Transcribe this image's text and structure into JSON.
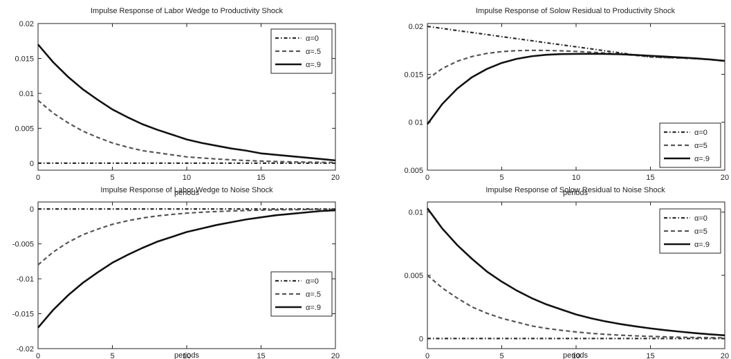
{
  "chart_data": [
    {
      "type": "line",
      "title": "Impulse Response of Labor Wedge to Productivity Shock",
      "xlabel": "periods",
      "ylabel": "",
      "xlim": [
        0,
        20
      ],
      "ylim": [
        -0.001,
        0.02
      ],
      "xticks": [
        0,
        5,
        10,
        15,
        20
      ],
      "xtick_labels": [
        "0",
        "5",
        "10",
        "15",
        "20"
      ],
      "yticks": [
        0,
        0.005,
        0.01,
        0.015,
        0.02
      ],
      "ytick_labels": [
        "0",
        "0.005",
        "0.01",
        "0.015",
        "0.02"
      ],
      "legend_position": "top-right",
      "x": [
        0,
        1,
        2,
        3,
        4,
        5,
        6,
        7,
        8,
        9,
        10,
        11,
        12,
        13,
        14,
        15,
        16,
        17,
        18,
        19,
        20
      ],
      "series": [
        {
          "name": "α=0",
          "style": "dashdot",
          "values": [
            0,
            0,
            0,
            0,
            0,
            0,
            0,
            0,
            0,
            0,
            0,
            0,
            0,
            0,
            0,
            0,
            0,
            0,
            0,
            0,
            0
          ]
        },
        {
          "name": "α=.5",
          "style": "dashed",
          "values": [
            0.009,
            0.0072,
            0.0058,
            0.0046,
            0.0037,
            0.0029,
            0.0023,
            0.0018,
            0.0015,
            0.0012,
            0.0009,
            0.00075,
            0.0006,
            0.00048,
            0.00038,
            0.0003,
            0.00024,
            0.00019,
            0.00015,
            0.00012,
            0.0001
          ]
        },
        {
          "name": "α=.9",
          "style": "solid",
          "values": [
            0.017,
            0.0145,
            0.0124,
            0.0106,
            0.0091,
            0.0077,
            0.0066,
            0.0056,
            0.0048,
            0.0041,
            0.0034,
            0.0029,
            0.0025,
            0.0021,
            0.0018,
            0.0014,
            0.0012,
            0.001,
            0.0008,
            0.0006,
            0.0004
          ]
        }
      ]
    },
    {
      "type": "line",
      "title": "Impulse Response of Solow Residual to Productivity Shock",
      "xlabel": "periods",
      "ylabel": "",
      "xlim": [
        0,
        20
      ],
      "ylim": [
        0.005,
        0.0203
      ],
      "xticks": [
        0,
        5,
        10,
        15,
        20
      ],
      "xtick_labels": [
        "0",
        "5",
        "10",
        "15",
        "20"
      ],
      "yticks": [
        0.005,
        0.01,
        0.015,
        0.02
      ],
      "ytick_labels": [
        "0.005",
        "0 01",
        "0.015",
        "0.02"
      ],
      "legend_position": "bottom-right",
      "x": [
        0,
        1,
        2,
        3,
        4,
        5,
        6,
        7,
        8,
        9,
        10,
        11,
        12,
        13,
        14,
        15,
        16,
        17,
        18,
        19,
        20
      ],
      "series": [
        {
          "name": "α=0",
          "style": "dashdot",
          "values": [
            0.02,
            0.01979,
            0.01957,
            0.01936,
            0.01915,
            0.01893,
            0.01872,
            0.01851,
            0.01829,
            0.01808,
            0.01787,
            0.01766,
            0.01744,
            0.01723,
            0.01702,
            0.0168,
            0.01675,
            0.0167,
            0.01664,
            0.01654,
            0.0164
          ]
        },
        {
          "name": "α=5",
          "style": "dashed",
          "values": [
            0.0145,
            0.0156,
            0.01636,
            0.01686,
            0.01718,
            0.01737,
            0.01747,
            0.0175,
            0.01749,
            0.01745,
            0.01739,
            0.01731,
            0.01721,
            0.0171,
            0.01697,
            0.01682,
            0.01675,
            0.0167,
            0.01664,
            0.01654,
            0.0164
          ]
        },
        {
          "name": "α=.9",
          "style": "solid",
          "values": [
            0.0098,
            0.0119,
            0.0135,
            0.0147,
            0.01556,
            0.01619,
            0.01661,
            0.01688,
            0.01704,
            0.01711,
            0.01713,
            0.01714,
            0.01713,
            0.01709,
            0.01702,
            0.01693,
            0.01685,
            0.01676,
            0.01667,
            0.01655,
            0.0164
          ]
        }
      ]
    },
    {
      "type": "line",
      "title": "Impulse Response of Labor Wedge to Noise Shock",
      "xlabel": "periods",
      "ylabel": "",
      "xlim": [
        0,
        20
      ],
      "ylim": [
        -0.02,
        0.001
      ],
      "xticks": [
        0,
        5,
        10,
        15,
        20
      ],
      "xtick_labels": [
        "0",
        "5",
        "10",
        "15",
        "20"
      ],
      "yticks": [
        -0.02,
        -0.015,
        -0.01,
        -0.005,
        0
      ],
      "ytick_labels": [
        "-0.02",
        "-0.015",
        "-0.01",
        "-0.005",
        "0"
      ],
      "legend_position": "bottom-right",
      "x": [
        0,
        1,
        2,
        3,
        4,
        5,
        6,
        7,
        8,
        9,
        10,
        11,
        12,
        13,
        14,
        15,
        16,
        17,
        18,
        19,
        20
      ],
      "series": [
        {
          "name": "α=0",
          "style": "dashdot",
          "values": [
            0,
            0,
            0,
            0,
            0,
            0,
            0,
            0,
            0,
            0,
            0,
            0,
            0,
            0,
            0,
            0,
            0,
            0,
            0,
            0,
            0
          ]
        },
        {
          "name": "α=.5",
          "style": "dashed",
          "values": [
            -0.008,
            -0.0062,
            -0.0048,
            -0.0037,
            -0.0029,
            -0.0022,
            -0.0017,
            -0.0013,
            -0.001,
            -0.00078,
            -0.0006,
            -0.00047,
            -0.00037,
            -0.00029,
            -0.00022,
            -0.00017,
            -0.00013,
            -0.0001,
            -8e-05,
            -6e-05,
            -5e-05
          ]
        },
        {
          "name": "α=.9",
          "style": "solid",
          "values": [
            -0.017,
            -0.0145,
            -0.0124,
            -0.0106,
            -0.0091,
            -0.0077,
            -0.0066,
            -0.0056,
            -0.0047,
            -0.004,
            -0.0033,
            -0.0028,
            -0.0023,
            -0.0019,
            -0.0015,
            -0.0012,
            -0.0009,
            -0.0007,
            -0.0005,
            -0.0003,
            -0.0002
          ]
        }
      ]
    },
    {
      "type": "line",
      "title": "Impulse Response of Solow Residual to Noise Shock",
      "xlabel": "periods",
      "ylabel": "",
      "xlim": [
        0,
        20
      ],
      "ylim": [
        -0.0008,
        0.0108
      ],
      "xticks": [
        0,
        5,
        10,
        15,
        20
      ],
      "xtick_labels": [
        "0",
        "5",
        "10",
        "15",
        "20"
      ],
      "yticks": [
        0,
        0.005,
        0.01
      ],
      "ytick_labels": [
        "0",
        "0.005",
        "0.01"
      ],
      "legend_position": "top-right",
      "x": [
        0,
        1,
        2,
        3,
        4,
        5,
        6,
        7,
        8,
        9,
        10,
        11,
        12,
        13,
        14,
        15,
        16,
        17,
        18,
        19,
        20
      ],
      "series": [
        {
          "name": "α=0",
          "style": "dashdot",
          "values": [
            0,
            0,
            0,
            0,
            0,
            0,
            0,
            0,
            0,
            0,
            0,
            0,
            0,
            0,
            0,
            0,
            0,
            0,
            0,
            0,
            0
          ]
        },
        {
          "name": "α=5",
          "style": "dashed",
          "values": [
            0.005,
            0.004,
            0.0032,
            0.0025,
            0.002,
            0.0016,
            0.0013,
            0.001,
            0.0008,
            0.00065,
            0.00052,
            0.00041,
            0.00033,
            0.00026,
            0.00021,
            0.00017,
            0.00013,
            0.0001,
            8e-05,
            7e-05,
            5e-05
          ]
        },
        {
          "name": "α=.9",
          "style": "solid",
          "values": [
            0.0103,
            0.0087,
            0.0074,
            0.0063,
            0.0053,
            0.0045,
            0.0038,
            0.0032,
            0.0027,
            0.0023,
            0.0019,
            0.0016,
            0.00135,
            0.00114,
            0.00096,
            0.0008,
            0.00066,
            0.00054,
            0.00043,
            0.00033,
            0.00025
          ]
        }
      ]
    }
  ]
}
